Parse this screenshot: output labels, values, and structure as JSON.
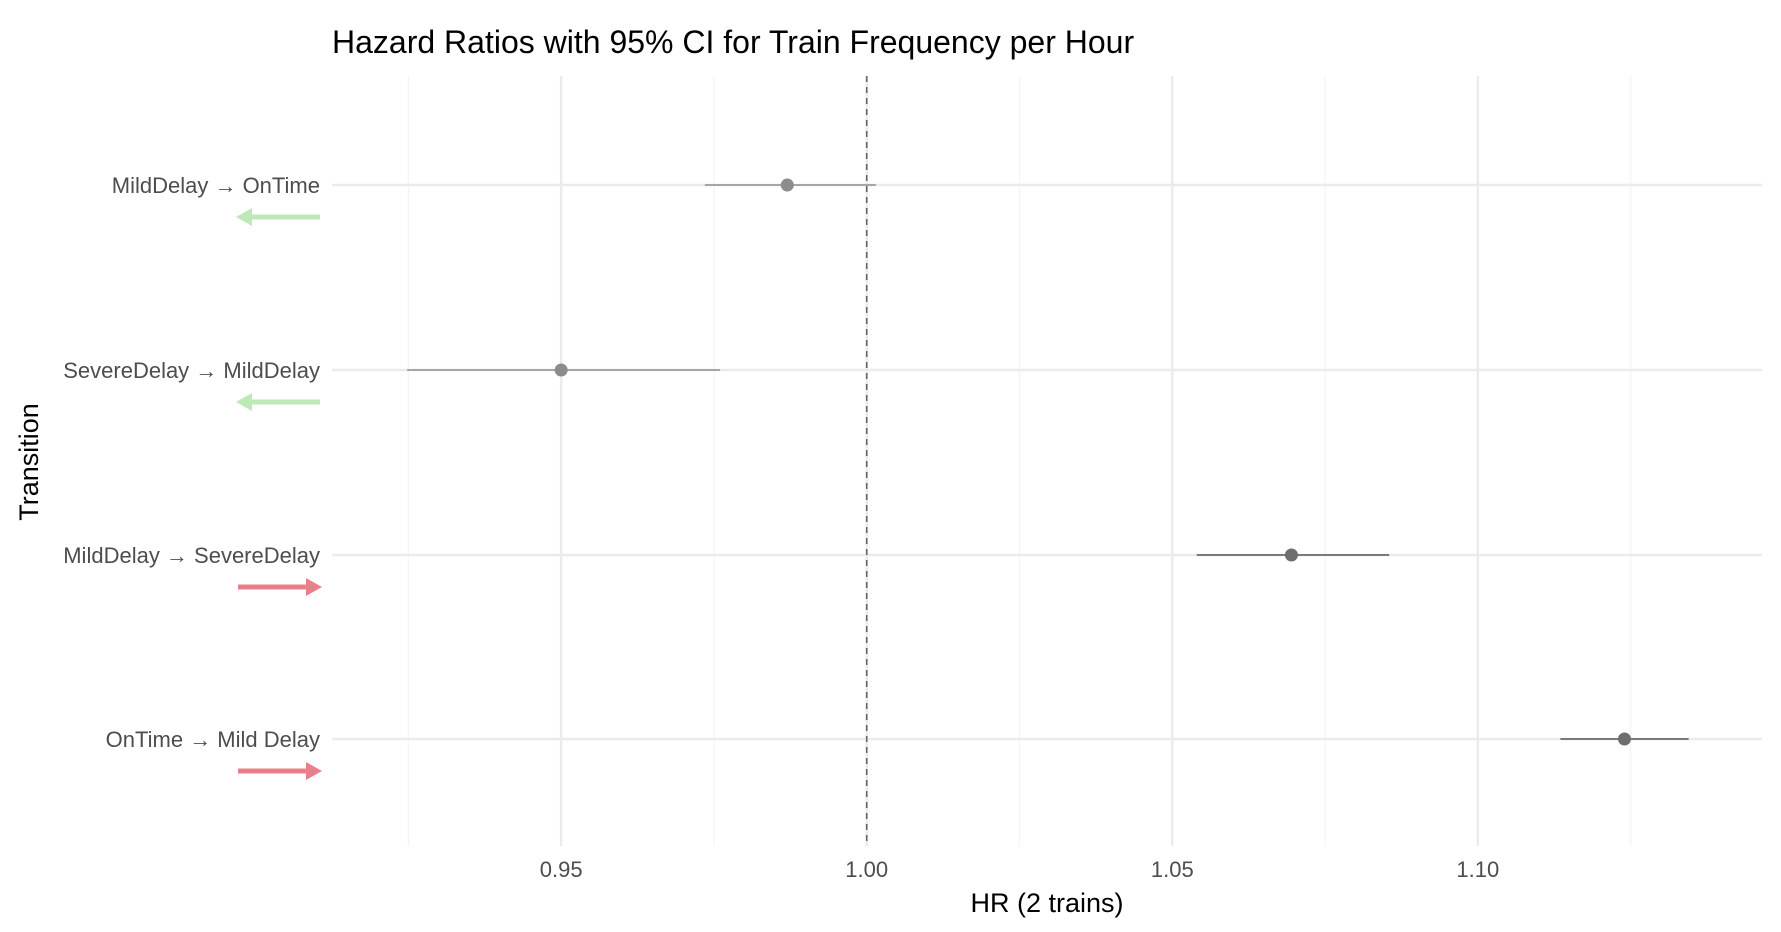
{
  "chart_data": {
    "type": "forest",
    "title": "Hazard Ratios with 95% CI for Train Frequency per Hour",
    "xlabel": "HR (2 trains)",
    "ylabel": "Transition",
    "xlim": [
      0.9125,
      1.1465
    ],
    "x_ticks": [
      0.95,
      1.0,
      1.05,
      1.1
    ],
    "x_tick_labels": [
      "0.95",
      "1.00",
      "1.05",
      "1.10"
    ],
    "reference_line": 1.0,
    "grid": true,
    "rows": [
      {
        "label": "MildDelay → OnTime",
        "hr": 0.987,
        "lower": 0.9735,
        "upper": 1.0015,
        "point_color": "#8c8c8c",
        "line_color": "#a6a6a6",
        "arrow": "left",
        "arrow_color": "#bfe8b8"
      },
      {
        "label": "SevereDelay → MildDelay",
        "hr": 0.95,
        "lower": 0.9248,
        "upper": 0.976,
        "point_color": "#8c8c8c",
        "line_color": "#a6a6a6",
        "arrow": "left",
        "arrow_color": "#bfe8b8"
      },
      {
        "label": "MildDelay → SevereDelay",
        "hr": 1.0695,
        "lower": 1.054,
        "upper": 1.0855,
        "point_color": "#6e6e6e",
        "line_color": "#7a7a7a",
        "arrow": "right",
        "arrow_color": "#e8808c"
      },
      {
        "label": "OnTime → Mild Delay",
        "hr": 1.124,
        "lower": 1.1135,
        "upper": 1.1345,
        "point_color": "#6e6e6e",
        "line_color": "#7a7a7a",
        "arrow": "right",
        "arrow_color": "#e8808c"
      }
    ]
  }
}
